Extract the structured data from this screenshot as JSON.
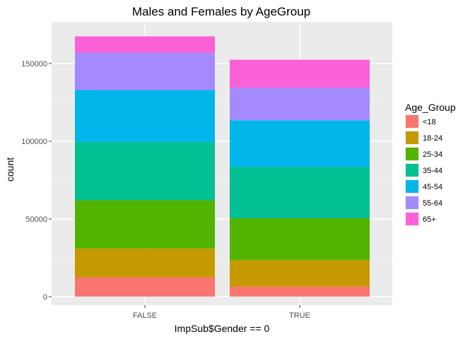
{
  "chart_data": {
    "type": "bar",
    "stacked": true,
    "title": "Males and Females by AgeGroup",
    "xlabel": "ImpSub$Gender == 0",
    "ylabel": "count",
    "categories": [
      "FALSE",
      "TRUE"
    ],
    "ylim": [
      0,
      168000
    ],
    "yticks": [
      0,
      50000,
      100000,
      150000
    ],
    "ytick_labels": [
      "0",
      "50000",
      "100000",
      "150000"
    ],
    "grid": true,
    "legend": {
      "title": "Age_Group",
      "position": "right"
    },
    "series": [
      {
        "name": "<18",
        "color": "#F8766D",
        "values": [
          12500,
          6500
        ]
      },
      {
        "name": "18-24",
        "color": "#C49A00",
        "values": [
          18500,
          17000
        ]
      },
      {
        "name": "25-34",
        "color": "#53B400",
        "values": [
          31000,
          27000
        ]
      },
      {
        "name": "35-44",
        "color": "#00C094",
        "values": [
          37500,
          33000
        ]
      },
      {
        "name": "45-54",
        "color": "#00B6EB",
        "values": [
          33500,
          30000
        ]
      },
      {
        "name": "55-64",
        "color": "#A58AFF",
        "values": [
          24000,
          21000
        ]
      },
      {
        "name": "65+",
        "color": "#FB61D7",
        "values": [
          10500,
          18000
        ]
      }
    ]
  }
}
